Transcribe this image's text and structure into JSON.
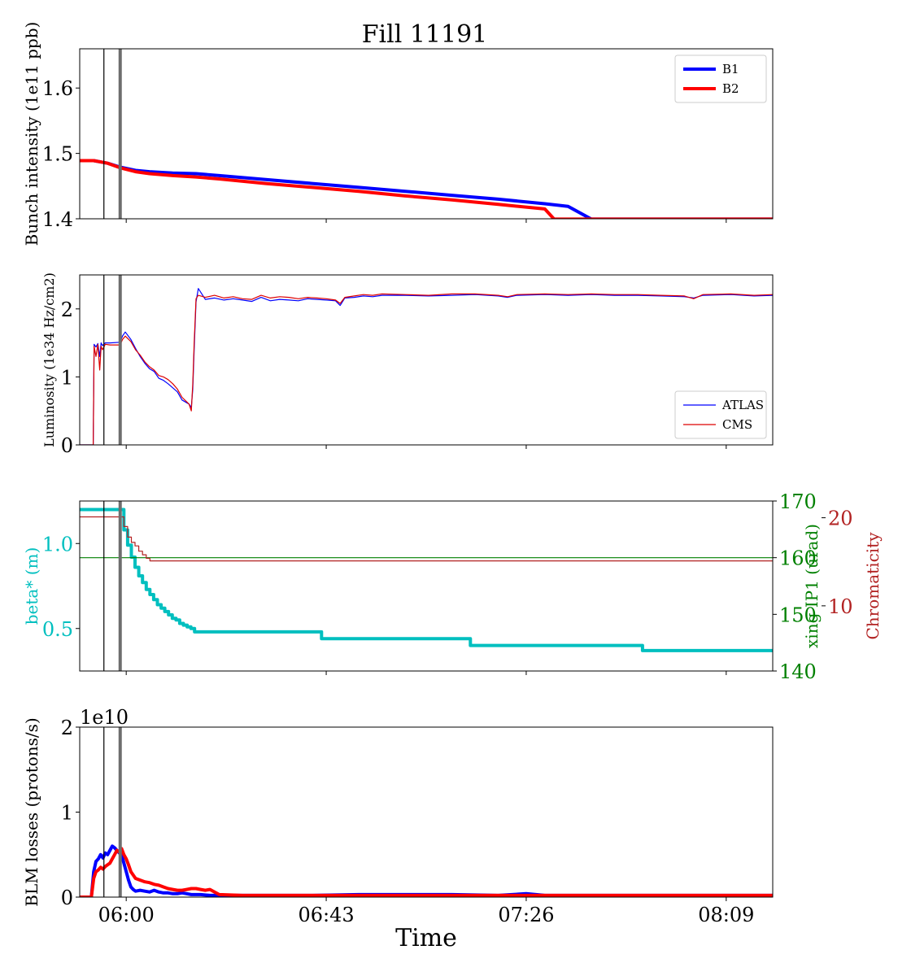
{
  "figure": {
    "title": "Fill 11191",
    "xlabel": "Time",
    "x_ticks": [
      "06:00",
      "06:43",
      "07:26",
      "08:09"
    ],
    "x_tick_minutes": [
      360,
      403,
      446,
      489
    ],
    "x_range_minutes": [
      350,
      499
    ],
    "markers_minutes": [
      {
        "t": 355.2,
        "style": "thin"
      },
      {
        "t": 358.7,
        "style": "thick"
      }
    ]
  },
  "chart_data": [
    {
      "type": "line",
      "id": "intensity",
      "ylabel": "Bunch intensity (1e11 ppb)",
      "ylim": [
        1.4,
        1.66
      ],
      "yticks": [
        1.4,
        1.5,
        1.6
      ],
      "ytick_labels": [
        "1.4",
        "1.5",
        "1.6"
      ],
      "legend": "top-right",
      "series": [
        {
          "name": "B1",
          "color": "#0000ff",
          "width": 4,
          "x": [
            350,
            353,
            356,
            358.7,
            362,
            365,
            370,
            375,
            380,
            390,
            400,
            410,
            420,
            430,
            440,
            450,
            455,
            460,
            499
          ],
          "y": [
            1.489,
            1.489,
            1.485,
            1.479,
            1.474,
            1.472,
            1.47,
            1.469,
            1.466,
            1.46,
            1.454,
            1.448,
            1.442,
            1.436,
            1.43,
            1.423,
            1.419,
            1.3995,
            1.3995
          ]
        },
        {
          "name": "B2",
          "color": "#ff0000",
          "width": 4,
          "x": [
            350,
            353,
            356,
            358.7,
            362,
            365,
            370,
            375,
            380,
            390,
            400,
            410,
            420,
            430,
            440,
            450,
            452,
            499
          ],
          "y": [
            1.489,
            1.489,
            1.485,
            1.478,
            1.472,
            1.469,
            1.466,
            1.464,
            1.461,
            1.454,
            1.448,
            1.442,
            1.435,
            1.429,
            1.422,
            1.415,
            1.3995,
            1.3995
          ]
        }
      ]
    },
    {
      "type": "line",
      "id": "luminosity",
      "ylabel": "Luminosity (1e34 Hz/cm2)",
      "ylim": [
        0,
        2.5
      ],
      "yticks": [
        0,
        1,
        2
      ],
      "ytick_labels": [
        "0",
        "1",
        "2"
      ],
      "legend": "bottom-right",
      "series": [
        {
          "name": "ATLAS",
          "color": "#0000ff",
          "width": 1.2,
          "x": [
            350,
            352.9,
            353.1,
            353.5,
            353.9,
            354.3,
            354.6,
            354.9,
            355.5,
            356.5,
            358.7,
            359.2,
            359.8,
            361,
            362,
            363,
            364,
            365,
            366,
            367,
            368,
            369,
            370,
            371,
            372,
            373.5,
            374,
            374.3,
            374.6,
            375,
            375.5,
            377,
            379,
            381,
            383,
            385,
            387,
            389,
            391,
            393,
            395,
            397,
            399,
            401,
            403,
            405,
            406,
            407,
            409,
            411,
            413,
            415,
            420,
            425,
            430,
            435,
            440,
            442,
            444,
            450,
            455,
            460,
            465,
            470,
            475,
            480,
            482,
            484,
            490,
            495,
            499
          ],
          "y": [
            0,
            0,
            1.48,
            1.44,
            1.49,
            1.3,
            1.5,
            1.46,
            1.5,
            1.5,
            1.51,
            1.6,
            1.66,
            1.55,
            1.42,
            1.3,
            1.2,
            1.12,
            1.08,
            0.98,
            0.95,
            0.9,
            0.84,
            0.78,
            0.66,
            0.6,
            0.55,
            0.82,
            1.4,
            2.1,
            2.3,
            2.14,
            2.16,
            2.13,
            2.15,
            2.13,
            2.11,
            2.17,
            2.12,
            2.14,
            2.13,
            2.12,
            2.15,
            2.14,
            2.13,
            2.12,
            2.05,
            2.16,
            2.17,
            2.19,
            2.18,
            2.2,
            2.2,
            2.19,
            2.2,
            2.21,
            2.19,
            2.17,
            2.2,
            2.21,
            2.2,
            2.21,
            2.2,
            2.2,
            2.19,
            2.18,
            2.16,
            2.2,
            2.21,
            2.19,
            2.2
          ]
        },
        {
          "name": "CMS",
          "color": "#dd0000",
          "width": 1.2,
          "x": [
            350,
            352.9,
            353.1,
            353.5,
            353.9,
            354.3,
            354.6,
            354.9,
            355.5,
            356.5,
            358.7,
            359.2,
            359.8,
            361,
            362,
            363,
            364,
            365,
            366,
            367,
            368,
            369,
            370,
            371,
            372,
            373.5,
            374,
            374.3,
            374.6,
            375,
            375.5,
            377,
            379,
            381,
            383,
            385,
            387,
            389,
            391,
            393,
            395,
            397,
            399,
            401,
            403,
            405,
            406,
            407,
            409,
            411,
            413,
            415,
            420,
            425,
            430,
            435,
            440,
            442,
            444,
            450,
            455,
            460,
            465,
            470,
            475,
            480,
            482,
            484,
            490,
            495,
            499
          ],
          "y": [
            0,
            0,
            1.45,
            1.3,
            1.48,
            1.1,
            1.45,
            1.4,
            1.48,
            1.47,
            1.47,
            1.55,
            1.6,
            1.52,
            1.4,
            1.32,
            1.22,
            1.15,
            1.1,
            1.02,
            1.0,
            0.96,
            0.9,
            0.82,
            0.7,
            0.6,
            0.5,
            0.9,
            1.5,
            2.15,
            2.2,
            2.17,
            2.2,
            2.16,
            2.18,
            2.15,
            2.14,
            2.2,
            2.16,
            2.18,
            2.17,
            2.15,
            2.17,
            2.16,
            2.15,
            2.13,
            2.08,
            2.17,
            2.19,
            2.21,
            2.2,
            2.22,
            2.21,
            2.2,
            2.22,
            2.22,
            2.2,
            2.18,
            2.21,
            2.22,
            2.21,
            2.22,
            2.21,
            2.21,
            2.2,
            2.19,
            2.15,
            2.21,
            2.22,
            2.2,
            2.21
          ]
        }
      ]
    },
    {
      "type": "line",
      "id": "optics",
      "ylabel": "beta* (m)",
      "ylabel_color": "#00bfbf",
      "ylim": [
        0.25,
        1.25
      ],
      "yticks": [
        0.5,
        1.0
      ],
      "ytick_labels": [
        "0.5",
        "1.0"
      ],
      "right_axes": [
        {
          "label": "xing IP1 (urad)",
          "color": "#008000",
          "ylim": [
            140,
            170
          ],
          "yticks": [
            140,
            150,
            160,
            170
          ],
          "ytick_labels": [
            "140",
            "150",
            "160",
            "170"
          ]
        },
        {
          "label": "Chromaticity",
          "color": "#b22222",
          "ylim": [
            2.6,
            21.9
          ],
          "yticks": [
            10,
            20
          ],
          "ytick_labels": [
            "10",
            "20"
          ]
        }
      ],
      "series": [
        {
          "name": "",
          "axis": "left",
          "color": "#00bfbf",
          "width": 4,
          "step": true,
          "x": [
            350,
            358.7,
            359.5,
            360.3,
            361.1,
            361.9,
            362.7,
            363.5,
            364.3,
            365.1,
            365.9,
            366.7,
            367.5,
            368.3,
            369.1,
            369.9,
            370.7,
            371.5,
            372.3,
            373.1,
            373.9,
            374.7,
            402,
            434,
            471,
            499
          ],
          "y": [
            1.2,
            1.2,
            1.08,
            0.99,
            0.92,
            0.86,
            0.81,
            0.77,
            0.73,
            0.7,
            0.67,
            0.64,
            0.62,
            0.6,
            0.58,
            0.56,
            0.55,
            0.53,
            0.52,
            0.51,
            0.5,
            0.48,
            0.44,
            0.4,
            0.37,
            0.37
          ]
        },
        {
          "name": "",
          "axis": "right1",
          "color": "#008000",
          "width": 1.2,
          "x": [
            350,
            499
          ],
          "y": [
            160,
            160
          ]
        },
        {
          "name": "",
          "axis": "right2",
          "color": "#b22222",
          "width": 1.2,
          "step": true,
          "x": [
            350,
            358.7,
            359.5,
            360.3,
            361.1,
            361.9,
            362.7,
            363.5,
            364.3,
            365.1,
            499
          ],
          "y": [
            20.1,
            20.1,
            19.0,
            17.8,
            17.2,
            16.8,
            16.2,
            15.8,
            15.4,
            15.1,
            15.1
          ]
        }
      ]
    },
    {
      "type": "line",
      "id": "losses",
      "ylabel": "BLM losses (protons/s)",
      "offset_label": "1e10",
      "ylim": [
        0,
        2
      ],
      "yticks": [
        0,
        1,
        2
      ],
      "ytick_labels": [
        "0",
        "1",
        "2"
      ],
      "series": [
        {
          "name": "",
          "color": "#0000ff",
          "width": 4,
          "x": [
            350,
            352.5,
            353,
            353.5,
            354,
            354.5,
            355,
            355.5,
            356,
            356.5,
            357,
            357.5,
            358,
            358.5,
            359,
            359.5,
            360,
            360.5,
            361,
            361.5,
            362,
            363,
            364,
            365,
            366,
            367,
            368,
            369,
            370,
            371,
            372,
            373,
            374,
            375,
            376,
            378,
            380,
            385,
            390,
            400,
            410,
            420,
            430,
            440,
            446,
            450,
            460,
            470,
            480,
            490,
            499
          ],
          "y": [
            0,
            0,
            0.3,
            0.42,
            0.45,
            0.5,
            0.46,
            0.52,
            0.5,
            0.55,
            0.6,
            0.58,
            0.55,
            0.52,
            0.5,
            0.4,
            0.3,
            0.2,
            0.12,
            0.09,
            0.07,
            0.08,
            0.07,
            0.06,
            0.08,
            0.06,
            0.05,
            0.05,
            0.04,
            0.04,
            0.05,
            0.04,
            0.03,
            0.03,
            0.03,
            0.02,
            0.02,
            0.02,
            0.02,
            0.02,
            0.03,
            0.03,
            0.03,
            0.02,
            0.04,
            0.02,
            0.02,
            0.02,
            0.02,
            0.02,
            0.02
          ]
        },
        {
          "name": "",
          "color": "#ff0000",
          "width": 4,
          "x": [
            350,
            352.5,
            353,
            353.5,
            354,
            354.5,
            355,
            355.5,
            356,
            356.5,
            357,
            357.5,
            358,
            358.5,
            359,
            359.5,
            360,
            360.5,
            361,
            362,
            363,
            364,
            365,
            366,
            367,
            368,
            369,
            370,
            371,
            372,
            373,
            374,
            375,
            376,
            377,
            378,
            379,
            380,
            385,
            390,
            400,
            410,
            420,
            430,
            440,
            450,
            460,
            470,
            480,
            490,
            499
          ],
          "y": [
            0,
            0,
            0.22,
            0.3,
            0.32,
            0.35,
            0.33,
            0.36,
            0.38,
            0.4,
            0.45,
            0.5,
            0.55,
            0.53,
            0.57,
            0.5,
            0.45,
            0.38,
            0.3,
            0.22,
            0.2,
            0.18,
            0.17,
            0.15,
            0.14,
            0.12,
            0.1,
            0.09,
            0.08,
            0.08,
            0.09,
            0.1,
            0.1,
            0.09,
            0.08,
            0.09,
            0.06,
            0.03,
            0.02,
            0.02,
            0.02,
            0.02,
            0.02,
            0.02,
            0.02,
            0.02,
            0.02,
            0.02,
            0.02,
            0.02,
            0.02
          ]
        }
      ]
    }
  ]
}
